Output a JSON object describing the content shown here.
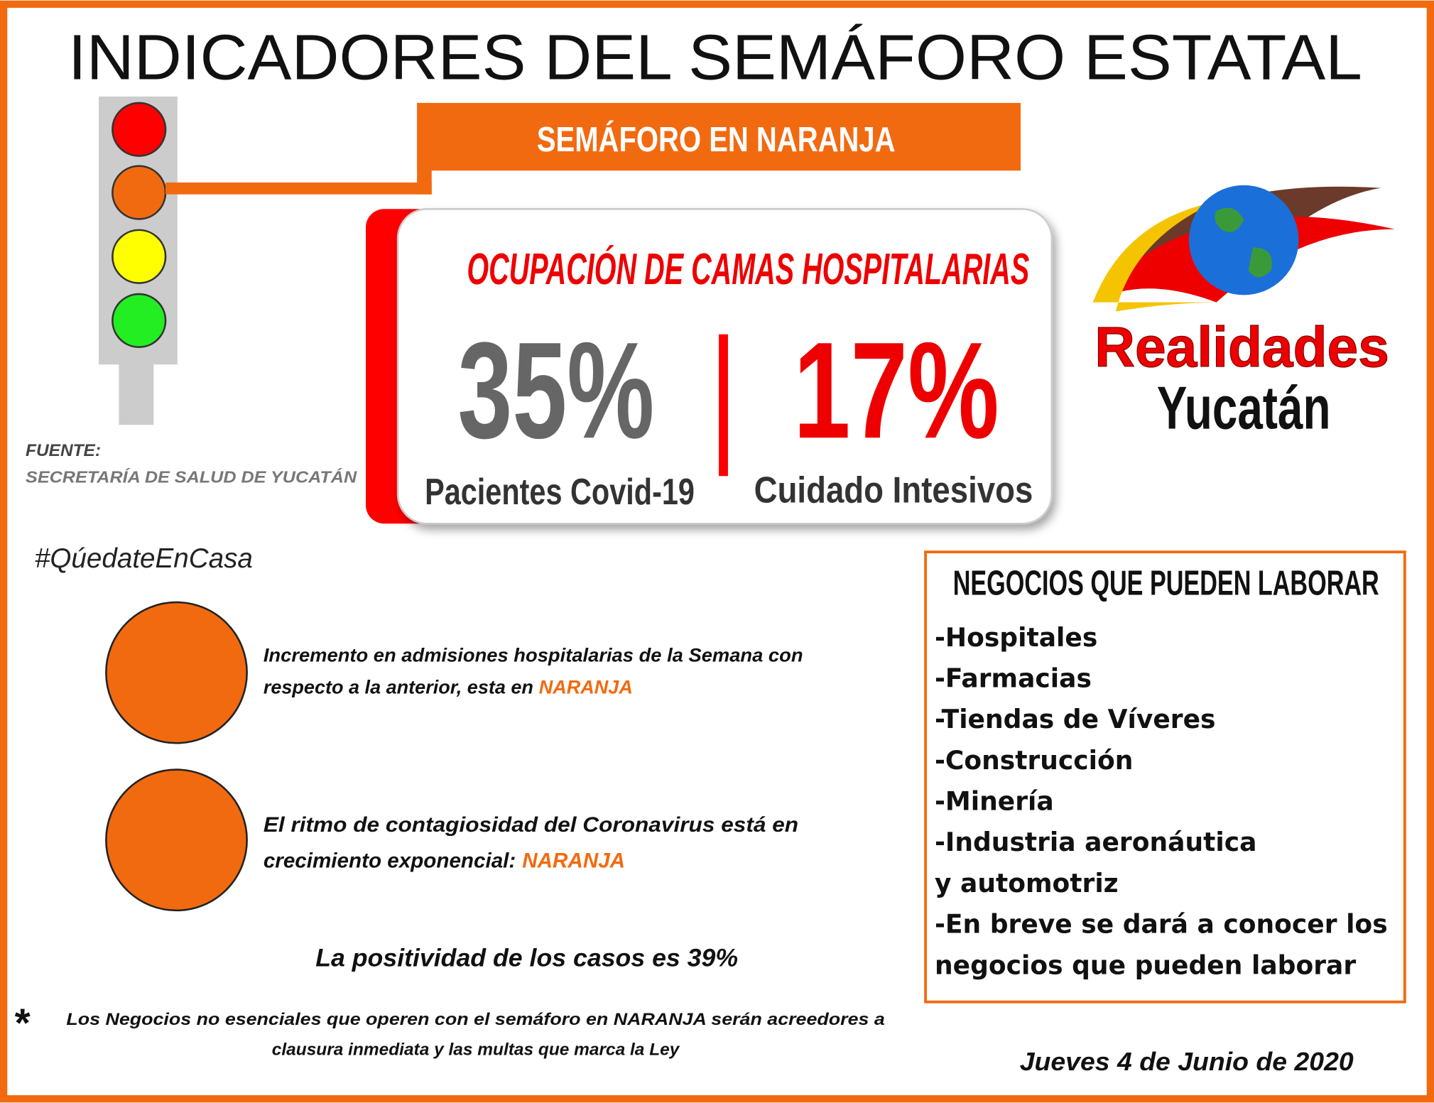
{
  "header": {
    "title": "INDICADORES DEL SEMÁFORO ESTATAL",
    "banner": "SEMÁFORO EN NARANJA"
  },
  "card": {
    "title": "OCUPACIÓN DE CAMAS HOSPITALARIAS",
    "stats": [
      {
        "value": "35%",
        "label": "Pacientes Covid-19"
      },
      {
        "value": "17%",
        "label": "Cuidado Intesivos"
      }
    ]
  },
  "source": {
    "label": "FUENTE:",
    "text": "SECRETARÍA DE SALUD DE YUCATÁN"
  },
  "logo": {
    "line1": "Realidades",
    "line2": "Yucatán"
  },
  "hashtag": "#QúedateEnCasa",
  "indicators": [
    {
      "lines": [
        "Incremento en admisiones hospitalarias de la Semana con",
        "respecto a la anterior, esta en"
      ],
      "highlight": "NARANJA"
    },
    {
      "lines": [
        "El ritmo de contagiosidad del Coronavirus está en",
        "crecimiento exponencial:"
      ],
      "highlight": "NARANJA"
    }
  ],
  "positivity": "La positividad de los casos es 39%",
  "businesses": {
    "title": "NEGOCIOS QUE PUEDEN LABORAR",
    "items": [
      "-Hospitales",
      "-Farmacias",
      "-Tiendas de Víveres",
      "-Construcción",
      "-Minería",
      "-Industria aeronáutica",
      "y automotriz",
      "-En breve se dará a conocer los",
      "negocios que pueden laborar"
    ]
  },
  "footnote": {
    "mark": "*",
    "lines": [
      "Los Negocios no esenciales que operen con el semáforo en NARANJA serán acreedores a",
      "clausura inmediata y las multas que marca la Ley"
    ]
  },
  "date": "Jueves 4 de Junio de 2020"
}
